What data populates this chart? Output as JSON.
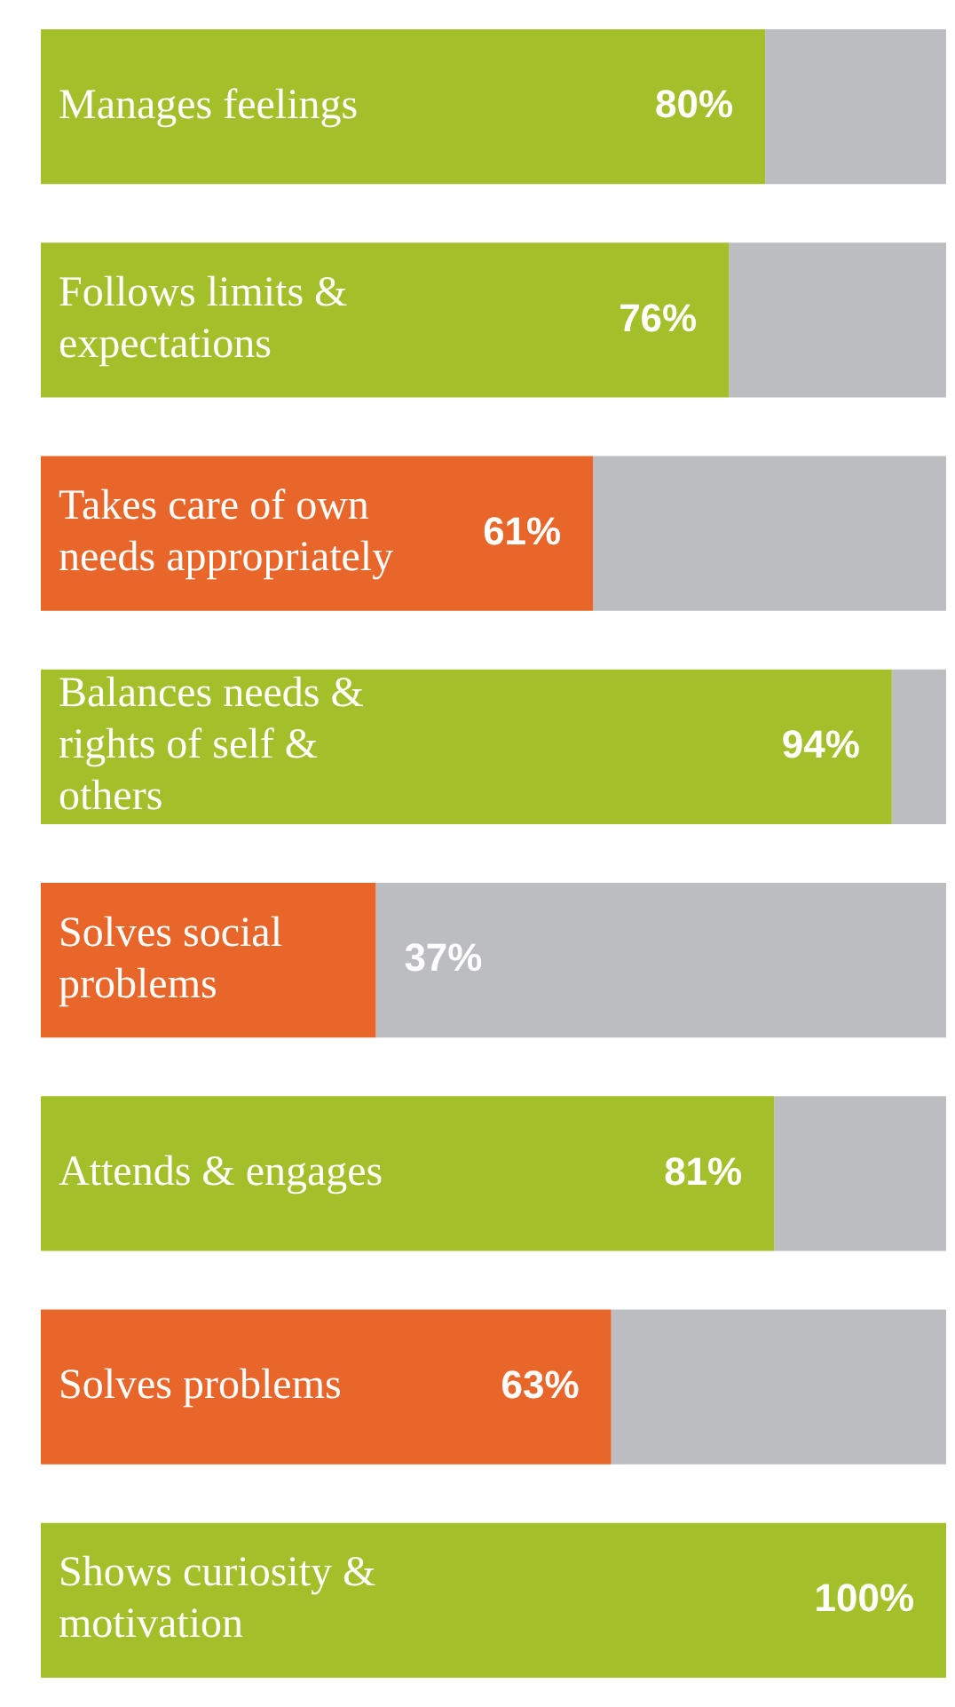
{
  "chart_data": {
    "type": "bar",
    "orientation": "horizontal",
    "stacked": true,
    "legend": false,
    "categories": [
      "Manages feelings",
      "Follows limits & expectations",
      "Takes care of own needs appropriately",
      "Balances needs & rights of self & others",
      "Solves social problems",
      "Attends & engages",
      "Solves problems",
      "Shows curiosity & motivation"
    ],
    "xlim": [
      0,
      100
    ],
    "series": [
      {
        "colors": [
          "#a3bf2a",
          "#a3bf2a",
          "#e8662a",
          "#a3bf2a",
          "#e8662a",
          "#a3bf2a",
          "#e8662a",
          "#a3bf2a"
        ],
        "values": [
          80,
          76,
          61,
          94,
          37,
          81,
          63,
          100
        ],
        "value_labels": [
          "80%",
          "76%",
          "61%",
          "94%",
          "37%",
          "81%",
          "63%",
          "100%"
        ]
      },
      {
        "color": "#bcbdc0",
        "values": [
          20,
          24,
          39,
          6,
          63,
          19,
          37,
          0
        ]
      }
    ]
  }
}
